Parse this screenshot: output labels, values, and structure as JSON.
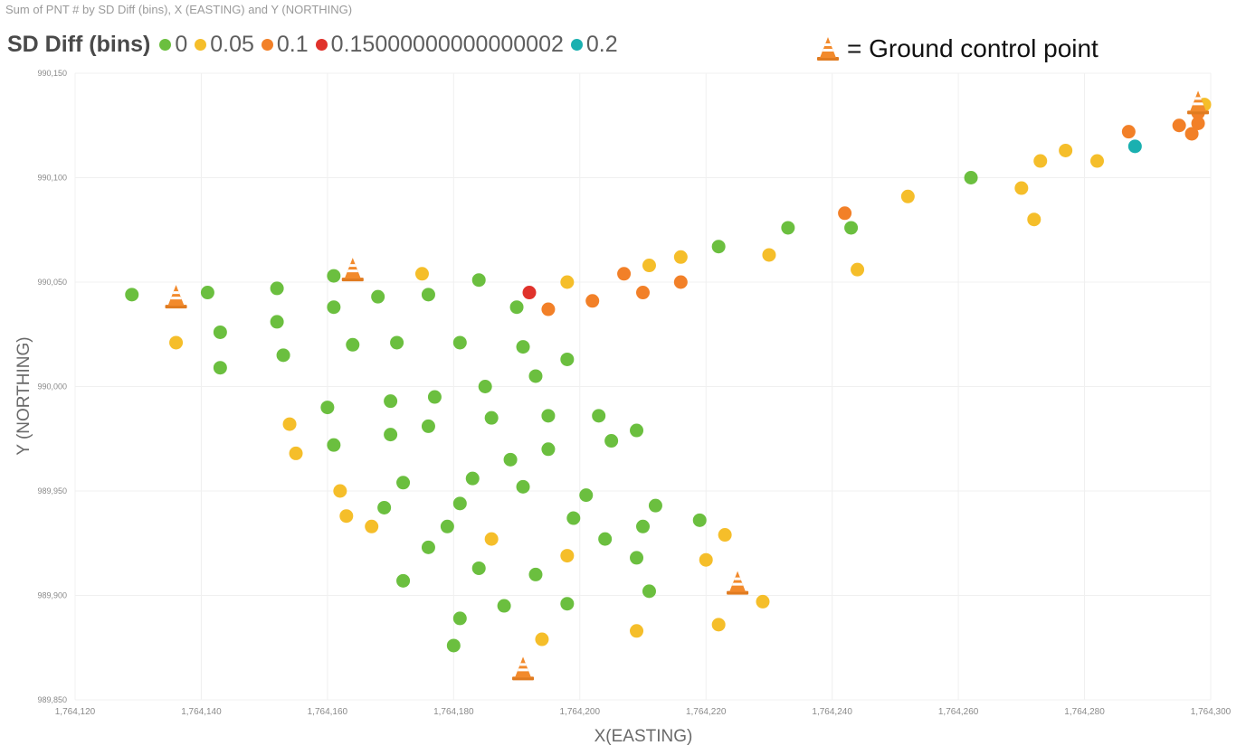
{
  "chart_data": {
    "type": "scatter",
    "subtitle": "Sum of PNT # by SD Diff (bins), X (EASTING) and Y (NORTHING)",
    "legend_title": "SD Diff (bins)",
    "legend_placement": "top-left",
    "grid": true,
    "xlabel": "X(EASTING)",
    "ylabel": "Y (NORTHING)",
    "xlim": [
      1764120,
      1764300
    ],
    "ylim": [
      989850,
      990150
    ],
    "x_ticks": [
      1764120,
      1764140,
      1764160,
      1764180,
      1764200,
      1764220,
      1764240,
      1764260,
      1764280,
      1764300
    ],
    "x_tick_labels": [
      "1,764,120",
      "1,764,140",
      "1,764,160",
      "1,764,180",
      "1,764,200",
      "1,764,220",
      "1,764,240",
      "1,764,260",
      "1,764,280",
      "1,764,300"
    ],
    "y_ticks": [
      989850,
      989900,
      989950,
      990000,
      990050,
      990100,
      990150
    ],
    "y_tick_labels": [
      "989,850",
      "989,900",
      "989,950",
      "990,000",
      "990,050",
      "990,100",
      "990,150"
    ],
    "annotation": "= Ground control point",
    "series": [
      {
        "name": "0",
        "color": "#6bbf3f",
        "points": [
          [
            1764129,
            990044
          ],
          [
            1764141,
            990045
          ],
          [
            1764143,
            990026
          ],
          [
            1764143,
            990009
          ],
          [
            1764152,
            990047
          ],
          [
            1764152,
            990031
          ],
          [
            1764153,
            990015
          ],
          [
            1764161,
            990053
          ],
          [
            1764161,
            990038
          ],
          [
            1764160,
            989990
          ],
          [
            1764161,
            989972
          ],
          [
            1764164,
            990020
          ],
          [
            1764168,
            990043
          ],
          [
            1764169,
            989942
          ],
          [
            1764170,
            989993
          ],
          [
            1764170,
            989977
          ],
          [
            1764171,
            990021
          ],
          [
            1764172,
            989954
          ],
          [
            1764172,
            989907
          ],
          [
            1764176,
            990044
          ],
          [
            1764176,
            989981
          ],
          [
            1764176,
            989923
          ],
          [
            1764177,
            989995
          ],
          [
            1764179,
            989933
          ],
          [
            1764180,
            989876
          ],
          [
            1764181,
            990021
          ],
          [
            1764181,
            989944
          ],
          [
            1764181,
            989889
          ],
          [
            1764183,
            989956
          ],
          [
            1764184,
            989913
          ],
          [
            1764184,
            990051
          ],
          [
            1764185,
            990000
          ],
          [
            1764186,
            989985
          ],
          [
            1764188,
            989895
          ],
          [
            1764189,
            989965
          ],
          [
            1764190,
            990038
          ],
          [
            1764191,
            990019
          ],
          [
            1764191,
            989952
          ],
          [
            1764193,
            990005
          ],
          [
            1764193,
            989910
          ],
          [
            1764195,
            989986
          ],
          [
            1764195,
            989970
          ],
          [
            1764198,
            989896
          ],
          [
            1764198,
            990013
          ],
          [
            1764199,
            989937
          ],
          [
            1764201,
            989948
          ],
          [
            1764203,
            989986
          ],
          [
            1764204,
            989927
          ],
          [
            1764205,
            989974
          ],
          [
            1764209,
            989979
          ],
          [
            1764209,
            989918
          ],
          [
            1764210,
            989933
          ],
          [
            1764211,
            989902
          ],
          [
            1764212,
            989943
          ],
          [
            1764219,
            989936
          ],
          [
            1764222,
            990067
          ],
          [
            1764233,
            990076
          ],
          [
            1764243,
            990076
          ],
          [
            1764262,
            990100
          ]
        ]
      },
      {
        "name": "0.05",
        "color": "#f5be2a",
        "points": [
          [
            1764136,
            990021
          ],
          [
            1764154,
            989982
          ],
          [
            1764155,
            989968
          ],
          [
            1764162,
            989950
          ],
          [
            1764163,
            989938
          ],
          [
            1764167,
            989933
          ],
          [
            1764175,
            990054
          ],
          [
            1764186,
            989927
          ],
          [
            1764194,
            989879
          ],
          [
            1764198,
            989919
          ],
          [
            1764198,
            990050
          ],
          [
            1764209,
            989883
          ],
          [
            1764211,
            990058
          ],
          [
            1764216,
            990062
          ],
          [
            1764220,
            989917
          ],
          [
            1764222,
            989886
          ],
          [
            1764223,
            989929
          ],
          [
            1764229,
            989897
          ],
          [
            1764230,
            990063
          ],
          [
            1764244,
            990056
          ],
          [
            1764252,
            990091
          ],
          [
            1764270,
            990095
          ],
          [
            1764272,
            990080
          ],
          [
            1764273,
            990108
          ],
          [
            1764277,
            990113
          ],
          [
            1764282,
            990108
          ],
          [
            1764299,
            990135
          ]
        ]
      },
      {
        "name": "0.1",
        "color": "#f28028",
        "points": [
          [
            1764195,
            990037
          ],
          [
            1764202,
            990041
          ],
          [
            1764207,
            990054
          ],
          [
            1764210,
            990045
          ],
          [
            1764216,
            990050
          ],
          [
            1764242,
            990083
          ],
          [
            1764287,
            990122
          ],
          [
            1764295,
            990125
          ],
          [
            1764297,
            990121
          ],
          [
            1764298,
            990126
          ],
          [
            1764298,
            990131
          ]
        ]
      },
      {
        "name": "0.15000000000000002",
        "color": "#e0322b",
        "points": [
          [
            1764192,
            990045
          ]
        ]
      },
      {
        "name": "0.2",
        "color": "#1ab0b0",
        "points": [
          [
            1764288,
            990115
          ]
        ]
      }
    ],
    "ground_control_points": [
      [
        1764136,
        990043
      ],
      [
        1764164,
        990056
      ],
      [
        1764191,
        989865
      ],
      [
        1764225,
        989906
      ],
      [
        1764298,
        990136
      ]
    ]
  }
}
